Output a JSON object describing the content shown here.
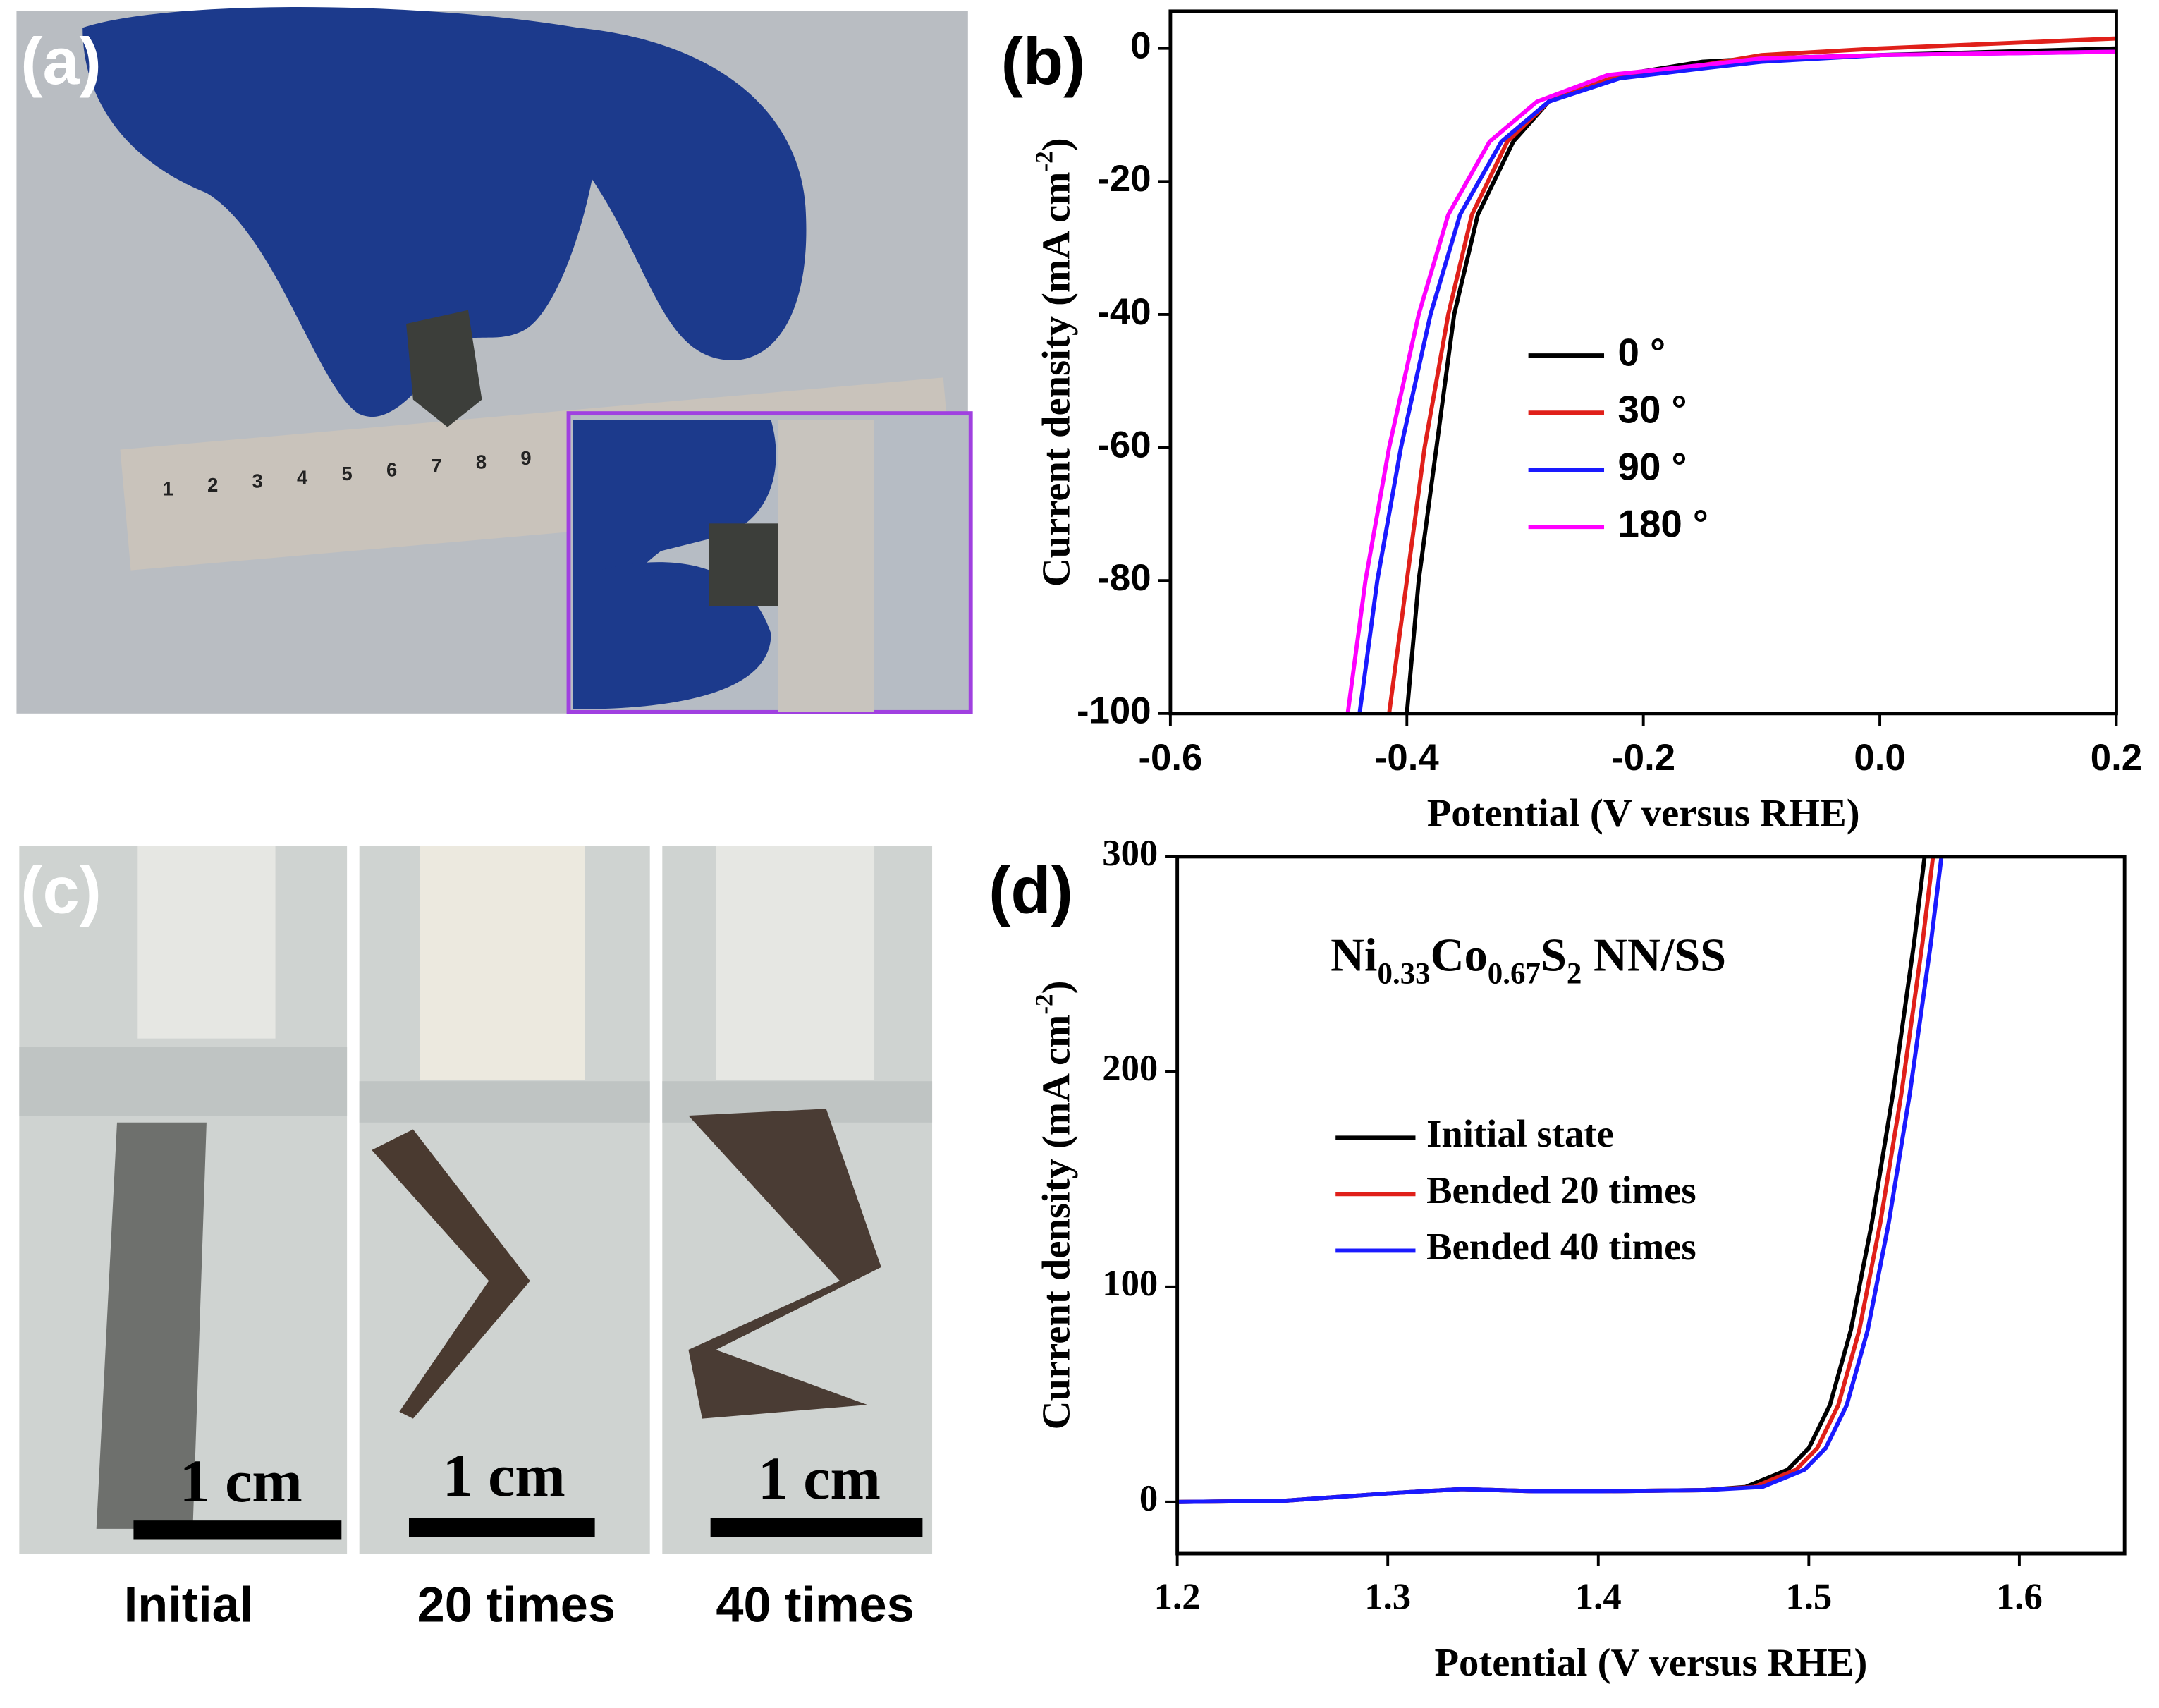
{
  "panel_labels": [
    "(a)",
    "(b)",
    "(c)",
    "(d)"
  ],
  "photo_a": {
    "ruler_numbers": [
      "1",
      "2",
      "3",
      "4",
      "5",
      "6",
      "7",
      "8",
      "9"
    ]
  },
  "photo_c": {
    "captions": [
      "Initial",
      "20 times",
      "40 times"
    ],
    "scale_bar": "1 cm"
  },
  "chart_data": [
    {
      "type": "line",
      "xlabel": "Potential (V versus RHE)",
      "ylabel": {
        "text": "Current density (mA cm",
        "sup": "-2",
        "end": ")"
      },
      "xlim": [
        -0.6,
        0.2
      ],
      "ylim": [
        -100,
        5.6
      ],
      "xticks": [
        -0.6,
        -0.4,
        -0.2,
        {
          "value": 0,
          "label": "0.0"
        },
        0.2
      ],
      "yticks": [
        0,
        -20,
        -40,
        -60,
        -80,
        -100
      ],
      "series": [
        {
          "name": "0 °",
          "color": "#000000",
          "x": [
            -0.4,
            -0.39,
            -0.375,
            -0.36,
            -0.34,
            -0.31,
            -0.28,
            -0.22,
            -0.15,
            -0.1,
            0,
            0.2
          ],
          "values": [
            -100,
            -80,
            -60,
            -40,
            -25,
            -14,
            -8,
            -4,
            -2,
            -1.5,
            -1,
            0
          ]
        },
        {
          "name": "30 °",
          "color": "#e0201a",
          "x": [
            -0.415,
            -0.4,
            -0.385,
            -0.365,
            -0.345,
            -0.315,
            -0.28,
            -0.22,
            -0.15,
            -0.1,
            0,
            0.2
          ],
          "values": [
            -100,
            -80,
            -60,
            -40,
            -25,
            -14,
            -8,
            -4,
            -2.5,
            -1,
            0,
            1.5
          ]
        },
        {
          "name": "90 °",
          "color": "#1a1aff",
          "x": [
            -0.44,
            -0.425,
            -0.405,
            -0.38,
            -0.355,
            -0.32,
            -0.28,
            -0.22,
            -0.15,
            -0.1,
            0,
            0.2
          ],
          "values": [
            -100,
            -80,
            -60,
            -40,
            -25,
            -14,
            -8,
            -4.5,
            -3,
            -2,
            -1,
            -0.5
          ]
        },
        {
          "name": "180 °",
          "color": "#ff00ff",
          "x": [
            -0.45,
            -0.435,
            -0.415,
            -0.39,
            -0.365,
            -0.33,
            -0.29,
            -0.23,
            -0.15,
            -0.1,
            0,
            0.2
          ],
          "values": [
            -100,
            -80,
            -60,
            -40,
            -25,
            -14,
            -8,
            -4,
            -2.5,
            -1.5,
            -1,
            -0.5
          ]
        }
      ]
    },
    {
      "type": "line",
      "xlabel": "Potential (V versus RHE)",
      "ylabel": {
        "text": "Current density (mA cm",
        "sup": "-2",
        "end": ")"
      },
      "annotation": {
        "parts": [
          {
            "t": "Ni"
          },
          {
            "t": "0.33",
            "sub": true
          },
          {
            "t": "Co"
          },
          {
            "t": "0.67",
            "sub": true
          },
          {
            "t": "S"
          },
          {
            "t": "2",
            "sub": true
          },
          {
            "t": " NN/SS"
          }
        ]
      },
      "xlim": [
        1.2,
        1.65
      ],
      "ylim": [
        -24,
        300
      ],
      "xticks": [
        1.2,
        1.3,
        1.4,
        1.5,
        1.6
      ],
      "yticks": [
        0,
        100,
        200,
        300
      ],
      "series": [
        {
          "name": "Initial state",
          "color": "#000000",
          "x": [
            1.2,
            1.25,
            1.3,
            1.335,
            1.37,
            1.4,
            1.45,
            1.47,
            1.49,
            1.5,
            1.51,
            1.52,
            1.53,
            1.54,
            1.55,
            1.555
          ],
          "values": [
            0,
            0.5,
            4,
            6,
            5,
            5,
            5.5,
            7,
            15,
            25,
            45,
            80,
            130,
            190,
            260,
            300
          ]
        },
        {
          "name": "Bended 20 times",
          "color": "#e0201a",
          "x": [
            1.2,
            1.25,
            1.3,
            1.335,
            1.37,
            1.4,
            1.45,
            1.474,
            1.494,
            1.504,
            1.514,
            1.524,
            1.534,
            1.544,
            1.554,
            1.559
          ],
          "values": [
            0,
            0.5,
            4,
            6,
            5,
            5,
            5.5,
            7,
            15,
            25,
            45,
            80,
            130,
            190,
            260,
            300
          ]
        },
        {
          "name": "Bended 40 times",
          "color": "#1a1aff",
          "x": [
            1.2,
            1.25,
            1.3,
            1.335,
            1.37,
            1.4,
            1.45,
            1.478,
            1.498,
            1.508,
            1.518,
            1.528,
            1.538,
            1.548,
            1.558,
            1.563
          ],
          "values": [
            0,
            0.5,
            4,
            6,
            5,
            5,
            5.5,
            7,
            15,
            25,
            45,
            80,
            130,
            190,
            260,
            300
          ]
        }
      ]
    }
  ]
}
